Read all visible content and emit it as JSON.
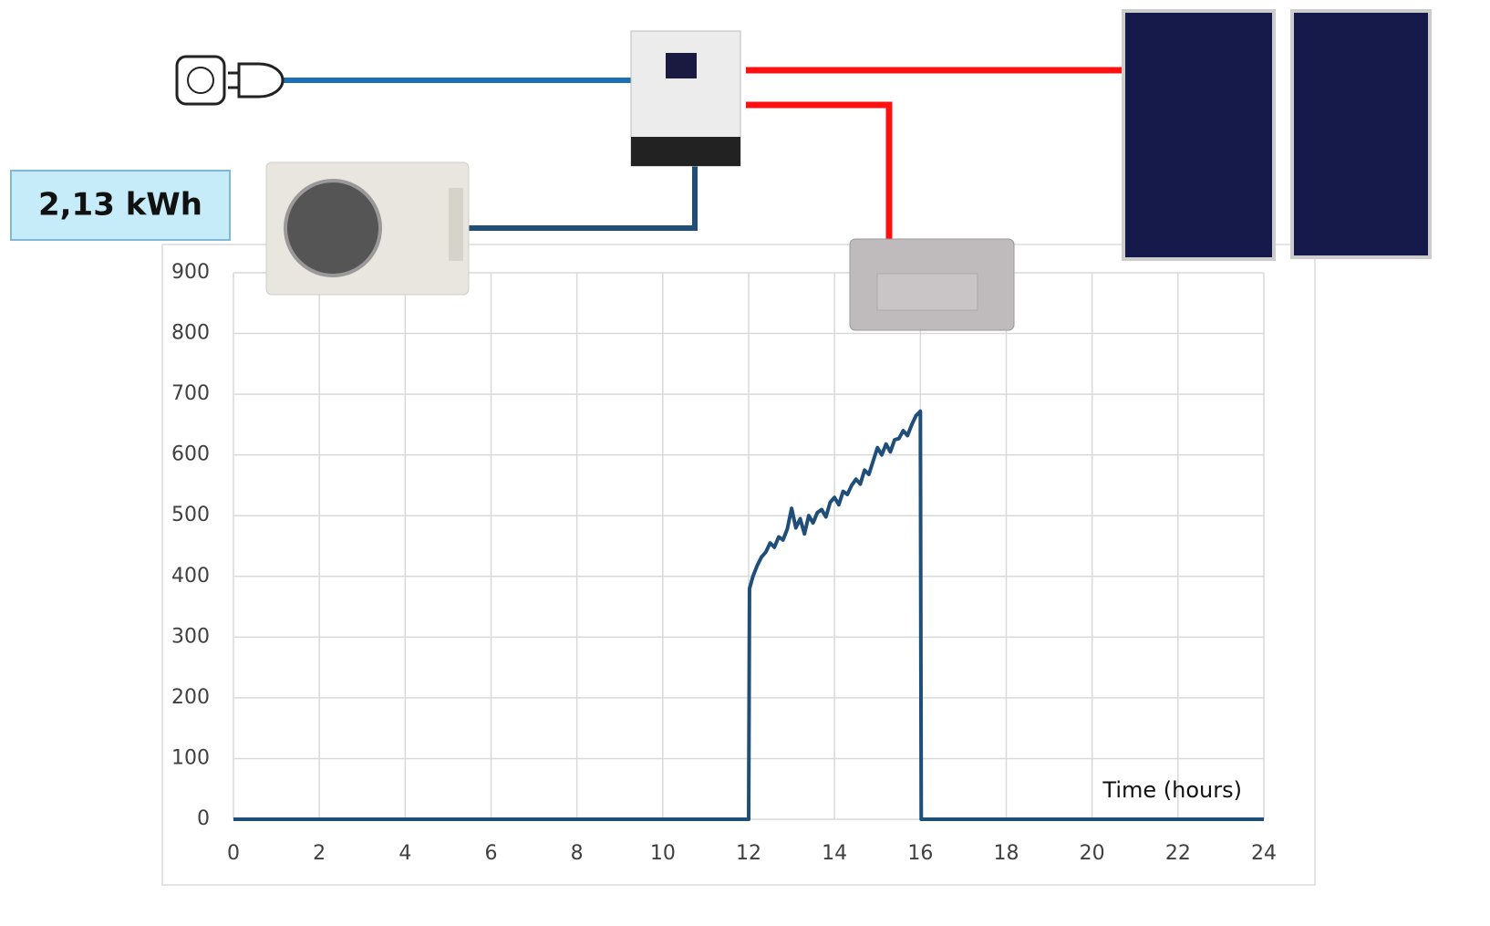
{
  "chart_data": {
    "type": "line",
    "annotation": "2,13 kWh",
    "x_label": "Time (hours)",
    "x": [
      0,
      12,
      12.02,
      12.1,
      12.2,
      12.3,
      12.4,
      12.5,
      12.6,
      12.7,
      12.8,
      12.9,
      13.0,
      13.1,
      13.2,
      13.3,
      13.4,
      13.5,
      13.6,
      13.7,
      13.8,
      13.9,
      14.0,
      14.1,
      14.2,
      14.3,
      14.4,
      14.5,
      14.6,
      14.7,
      14.8,
      14.9,
      15.0,
      15.1,
      15.2,
      15.3,
      15.4,
      15.5,
      15.6,
      15.7,
      15.8,
      15.9,
      16.0,
      16.02,
      24
    ],
    "values": [
      0,
      0,
      380,
      400,
      418,
      432,
      440,
      455,
      448,
      465,
      460,
      478,
      512,
      480,
      495,
      470,
      500,
      488,
      505,
      510,
      498,
      522,
      530,
      518,
      540,
      535,
      550,
      560,
      552,
      575,
      568,
      590,
      612,
      600,
      618,
      605,
      625,
      627,
      640,
      632,
      650,
      665,
      672,
      0,
      0
    ],
    "color": "#1f4e79",
    "xlim": [
      0,
      24
    ],
    "xticks": [
      0,
      2,
      4,
      6,
      8,
      10,
      12,
      14,
      16,
      18,
      20,
      22,
      24
    ],
    "ylim": [
      0,
      900
    ],
    "yticks": [
      0,
      100,
      200,
      300,
      400,
      500,
      600,
      700,
      800,
      900
    ],
    "grid": true
  }
}
